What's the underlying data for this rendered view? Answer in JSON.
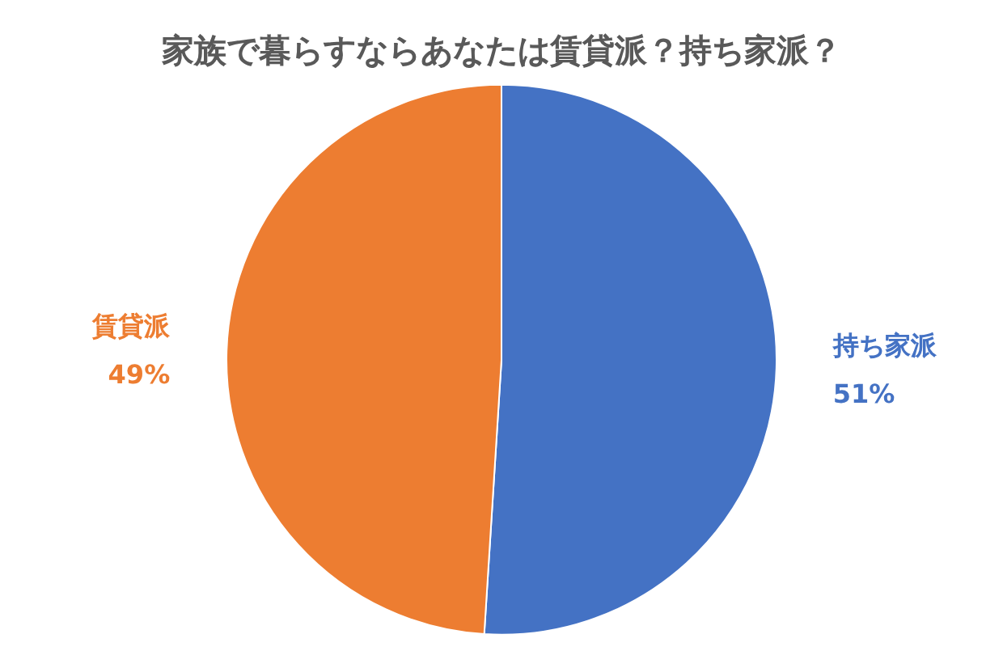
{
  "chart_data": {
    "type": "pie",
    "title": "家族で暮らすならあなたは賃貸派？持ち家派？",
    "categories": [
      "持ち家派",
      "賃貸派"
    ],
    "values": [
      51,
      49
    ],
    "colors": [
      "#4472c4",
      "#ed7d31"
    ],
    "value_labels": [
      "51%",
      "49%"
    ],
    "legend": false
  }
}
